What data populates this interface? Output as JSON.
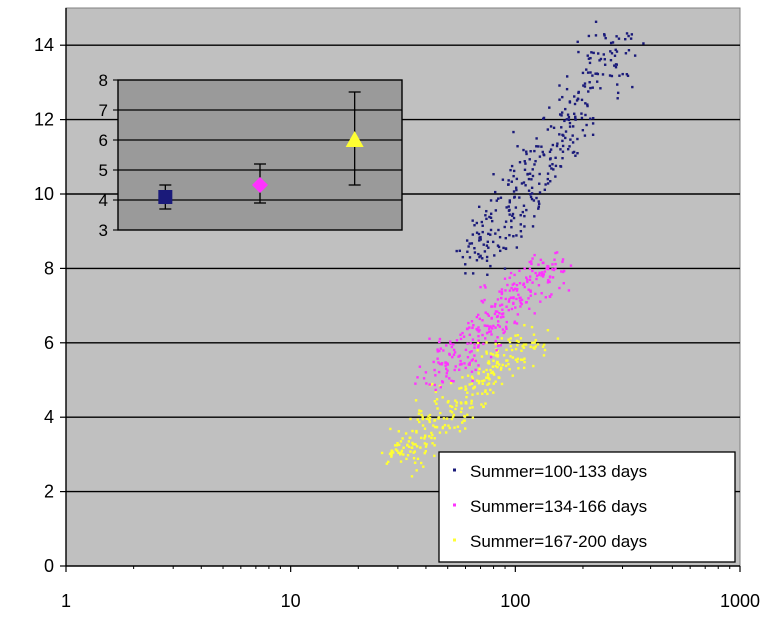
{
  "chart_data": {
    "type": "scatter",
    "x_scale": "log",
    "xlim": [
      1,
      1000
    ],
    "ylim": [
      0,
      15
    ],
    "x_ticks": [
      1,
      10,
      100,
      1000
    ],
    "x_tick_labels": [
      "1",
      "10",
      "100",
      "1000"
    ],
    "y_ticks": [
      0,
      2,
      4,
      6,
      8,
      10,
      12,
      14
    ],
    "y_tick_labels": [
      "0",
      "2",
      "4",
      "6",
      "8",
      "10",
      "12",
      "14"
    ],
    "grid": "horizontal",
    "legend_position": "bottom-right",
    "plot_background": "#c0c0c0",
    "series": [
      {
        "name": "Summer=100-133 days",
        "color": "#1a1a7a",
        "marker": "dot",
        "x_range": [
          65,
          300
        ],
        "y_range": [
          8,
          14.3
        ],
        "approx_points": 330
      },
      {
        "name": "Summer=134-166 days",
        "color": "#ff33ff",
        "marker": "dot",
        "x_range": [
          42,
          150
        ],
        "y_range": [
          5,
          8.2
        ],
        "approx_points": 300
      },
      {
        "name": "Summer=167-200 days",
        "color": "#ffff33",
        "marker": "dot",
        "x_range": [
          30,
          110
        ],
        "y_range": [
          2.8,
          6.2
        ],
        "approx_points": 300
      }
    ],
    "inset": {
      "type": "errorbar",
      "position": "top-left",
      "background": "#9a9a9a",
      "ylim": [
        3,
        8
      ],
      "y_ticks": [
        3,
        4,
        5,
        6,
        7,
        8
      ],
      "y_tick_labels": [
        "3",
        "4",
        "5",
        "6",
        "7",
        "8"
      ],
      "grid": "horizontal",
      "points": [
        {
          "series": "Summer=100-133 days",
          "marker": "square",
          "color": "#1a1a7a",
          "y": 4.1,
          "err_low": 3.7,
          "err_high": 4.5
        },
        {
          "series": "Summer=134-166 days",
          "marker": "diamond",
          "color": "#ff33ff",
          "y": 4.5,
          "err_low": 3.9,
          "err_high": 5.2
        },
        {
          "series": "Summer=167-200 days",
          "marker": "triangle",
          "color": "#ffff33",
          "y": 6.0,
          "err_low": 4.5,
          "err_high": 7.6
        }
      ]
    }
  }
}
